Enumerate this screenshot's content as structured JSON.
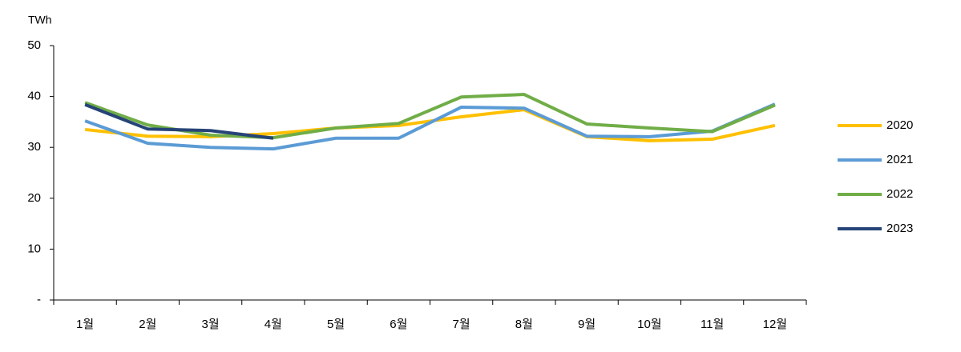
{
  "chart_data": {
    "type": "line",
    "y_axis_label": "TWh",
    "categories": [
      "1월",
      "2월",
      "3월",
      "4월",
      "5월",
      "6월",
      "7월",
      "8월",
      "9월",
      "10월",
      "11월",
      "12월"
    ],
    "ylim": [
      0,
      50
    ],
    "yticks": [
      {
        "value": 0,
        "label": "-"
      },
      10,
      20,
      30,
      40,
      50
    ],
    "legend": "right",
    "series": [
      {
        "name": "2020",
        "color": "#FFC000",
        "values": [
          33.5,
          32.2,
          32.1,
          32.7,
          33.8,
          34.3,
          36,
          37.4,
          32.1,
          31.3,
          31.6,
          34.3
        ]
      },
      {
        "name": "2021",
        "color": "#5B9BD5",
        "values": [
          35.2,
          30.8,
          30,
          29.7,
          31.8,
          31.8,
          37.9,
          37.7,
          32.2,
          32.1,
          33.2,
          38.5
        ]
      },
      {
        "name": "2022",
        "color": "#70AD47",
        "values": [
          38.8,
          34.4,
          32.4,
          31.9,
          33.8,
          34.7,
          39.9,
          40.4,
          34.6,
          33.8,
          33.1,
          38.3
        ]
      },
      {
        "name": "2023",
        "color": "#264478",
        "values": [
          38.4,
          33.6,
          33.3,
          31.8,
          null,
          null,
          null,
          null,
          null,
          null,
          null,
          null
        ]
      }
    ]
  }
}
